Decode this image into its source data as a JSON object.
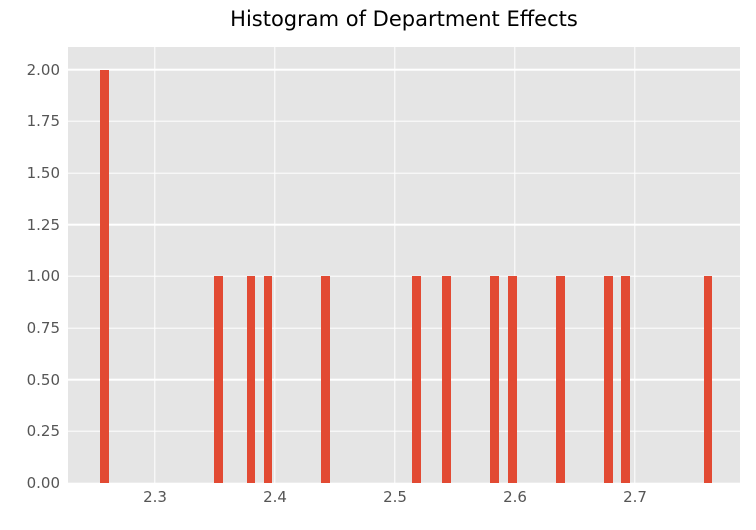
{
  "chart_data": {
    "type": "bar",
    "subtype": "histogram",
    "title": "Histogram of Department Effects",
    "xlabel": "",
    "ylabel": "",
    "x": [
      2.258,
      2.353,
      2.38,
      2.394,
      2.442,
      2.518,
      2.543,
      2.583,
      2.598,
      2.638,
      2.678,
      2.692,
      2.761
    ],
    "values": [
      2,
      1,
      1,
      1,
      1,
      1,
      1,
      1,
      1,
      1,
      1,
      1,
      1
    ],
    "bar_width": 0.007,
    "xlim": [
      2.2275,
      2.7875
    ],
    "ylim": [
      0,
      2.11
    ],
    "x_ticks": [
      2.3,
      2.4,
      2.5,
      2.6,
      2.7
    ],
    "x_tick_labels": [
      "2.3",
      "2.4",
      "2.5",
      "2.6",
      "2.7"
    ],
    "y_ticks": [
      0.0,
      0.25,
      0.5,
      0.75,
      1.0,
      1.25,
      1.5,
      1.75,
      2.0
    ],
    "y_tick_labels": [
      "0.00",
      "0.25",
      "0.50",
      "0.75",
      "1.00",
      "1.25",
      "1.50",
      "1.75",
      "2.00"
    ],
    "grid": true,
    "legend_position": "none",
    "colors": {
      "bar": "#E24A33",
      "plot_background": "#E5E5E5",
      "figure_background": "#FFFFFF",
      "gridline": "#FFFFFF",
      "tick_label": "#555555",
      "title": "#000000"
    }
  }
}
